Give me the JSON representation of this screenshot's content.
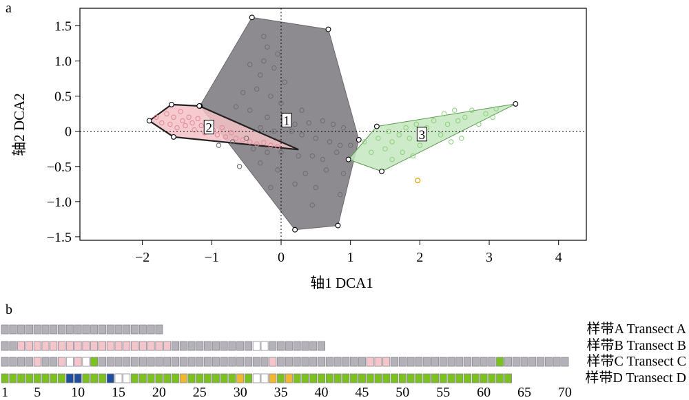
{
  "panel_a": {
    "letter": "a",
    "xlabel": "轴1 DCA1",
    "ylabel": "轴2 DCA2"
  },
  "panel_b": {
    "letter": "b"
  },
  "colors": {
    "group1_fill": "#8e8b90",
    "group1_point": "#6f6c72",
    "group2_fill": "#f4c2c8",
    "group2_point": "#e58a98",
    "group3_fill": "#c6e8c0",
    "group3_point": "#8fd07f",
    "outlier": "#e3a71c",
    "cell_gray": "#b4b2b8",
    "cell_pink": "#f5c5cc",
    "cell_green": "#7cc21e",
    "cell_yellow": "#f0b733",
    "cell_blue": "#1f4e9b",
    "cell_white": "#ffffff"
  },
  "chart_data": [
    {
      "type": "scatter",
      "xlim": [
        -2.9,
        4.4
      ],
      "ylim": [
        -1.55,
        1.75
      ],
      "x_ticks": [
        -2,
        -1,
        0,
        1,
        2,
        3,
        4
      ],
      "x_tick_labels": [
        "−2",
        "−1",
        "0",
        "1",
        "2",
        "3",
        "4"
      ],
      "y_ticks": [
        -1.5,
        -1.0,
        -0.5,
        0,
        0.5,
        1.0,
        1.5
      ],
      "y_tick_labels": [
        "−1.5",
        "−1.0",
        "−0.5",
        "0",
        "0.5",
        "1.0",
        "1.5"
      ],
      "reference_lines": {
        "x": 0,
        "y": 0
      },
      "groups": [
        {
          "label": "1",
          "label_pos": [
            0.08,
            0.15
          ],
          "hull": [
            [
              -0.42,
              1.62
            ],
            [
              0.68,
              1.45
            ],
            [
              1.12,
              -0.12
            ],
            [
              0.82,
              -1.34
            ],
            [
              0.2,
              -1.4
            ],
            [
              -1.17,
              0.36
            ]
          ],
          "points": [
            [
              -0.25,
              1.35
            ],
            [
              -0.2,
              1.2
            ],
            [
              -0.05,
              1.1
            ],
            [
              -0.25,
              1.0
            ],
            [
              -0.45,
              0.95
            ],
            [
              -0.1,
              0.9
            ],
            [
              -0.3,
              0.8
            ],
            [
              0.05,
              0.7
            ],
            [
              -0.35,
              0.6
            ],
            [
              -0.55,
              0.55
            ],
            [
              -0.15,
              0.5
            ],
            [
              0.0,
              0.4
            ],
            [
              0.3,
              0.3
            ],
            [
              -0.45,
              0.3
            ],
            [
              -0.65,
              0.35
            ],
            [
              -0.2,
              0.2
            ],
            [
              0.1,
              0.2
            ],
            [
              0.2,
              0.1
            ],
            [
              0.4,
              0.12
            ],
            [
              0.6,
              0.15
            ],
            [
              0.75,
              0.1
            ],
            [
              0.9,
              0.05
            ],
            [
              -0.3,
              0.05
            ],
            [
              -0.1,
              0.0
            ],
            [
              0.15,
              0.0
            ],
            [
              0.3,
              -0.05
            ],
            [
              0.5,
              -0.1
            ],
            [
              0.7,
              -0.15
            ],
            [
              0.85,
              -0.2
            ],
            [
              1.0,
              -0.2
            ],
            [
              -0.5,
              -0.1
            ],
            [
              -0.7,
              -0.15
            ],
            [
              -0.9,
              -0.2
            ],
            [
              -0.4,
              -0.25
            ],
            [
              -0.2,
              -0.3
            ],
            [
              0.0,
              -0.3
            ],
            [
              0.25,
              -0.35
            ],
            [
              0.45,
              -0.35
            ],
            [
              0.6,
              -0.4
            ],
            [
              0.8,
              -0.3
            ],
            [
              -0.3,
              -0.45
            ],
            [
              -0.6,
              -0.5
            ],
            [
              -0.05,
              -0.55
            ],
            [
              0.35,
              -0.6
            ],
            [
              0.65,
              -0.55
            ],
            [
              0.9,
              -0.6
            ],
            [
              0.2,
              -0.75
            ],
            [
              0.5,
              -0.8
            ],
            [
              0.85,
              -0.9
            ],
            [
              0.45,
              -1.05
            ],
            [
              -0.15,
              -0.8
            ]
          ],
          "hull_points": [
            [
              -0.42,
              1.62
            ],
            [
              0.68,
              1.45
            ],
            [
              1.12,
              -0.12
            ],
            [
              0.82,
              -1.34
            ],
            [
              0.2,
              -1.4
            ],
            [
              -1.17,
              0.36
            ]
          ]
        },
        {
          "label": "2",
          "label_pos": [
            -1.04,
            0.05
          ],
          "hull": [
            [
              -1.58,
              0.38
            ],
            [
              -1.18,
              0.36
            ],
            [
              0.25,
              -0.26
            ],
            [
              -1.55,
              -0.08
            ],
            [
              -1.9,
              0.15
            ]
          ],
          "points": [
            [
              -1.8,
              0.2
            ],
            [
              -1.72,
              0.12
            ],
            [
              -1.65,
              0.25
            ],
            [
              -1.6,
              0.1
            ],
            [
              -1.55,
              0.2
            ],
            [
              -1.5,
              0.05
            ],
            [
              -1.45,
              0.28
            ],
            [
              -1.42,
              0.15
            ],
            [
              -1.38,
              0.08
            ],
            [
              -1.33,
              0.2
            ],
            [
              -1.28,
              0.12
            ],
            [
              -1.25,
              0.02
            ],
            [
              -1.2,
              0.18
            ],
            [
              -1.15,
              0.08
            ],
            [
              -1.1,
              -0.02
            ],
            [
              -1.05,
              0.12
            ],
            [
              -0.98,
              0.02
            ],
            [
              -0.92,
              -0.05
            ],
            [
              -0.85,
              0.05
            ],
            [
              -0.8,
              -0.08
            ],
            [
              -0.72,
              -0.02
            ],
            [
              -0.65,
              -0.1
            ],
            [
              -0.55,
              -0.12
            ],
            [
              -0.45,
              -0.15
            ],
            [
              -0.35,
              -0.18
            ],
            [
              -0.25,
              -0.16
            ],
            [
              -0.15,
              -0.2
            ],
            [
              -0.05,
              -0.22
            ]
          ],
          "hull_points": [
            [
              -1.58,
              0.38
            ],
            [
              -1.9,
              0.15
            ],
            [
              -1.55,
              -0.08
            ],
            [
              -1.18,
              0.36
            ]
          ]
        },
        {
          "label": "3",
          "label_pos": [
            2.03,
            -0.05
          ],
          "hull": [
            [
              1.38,
              0.07
            ],
            [
              3.38,
              0.39
            ],
            [
              1.45,
              -0.57
            ],
            [
              0.97,
              -0.4
            ]
          ],
          "points": [
            [
              1.2,
              -0.15
            ],
            [
              1.3,
              -0.3
            ],
            [
              1.4,
              -0.1
            ],
            [
              1.5,
              -0.25
            ],
            [
              1.55,
              0.0
            ],
            [
              1.6,
              -0.15
            ],
            [
              1.7,
              -0.05
            ],
            [
              1.75,
              -0.3
            ],
            [
              1.8,
              0.05
            ],
            [
              1.85,
              -0.1
            ],
            [
              1.95,
              0.1
            ],
            [
              2.0,
              -0.2
            ],
            [
              2.1,
              0.05
            ],
            [
              2.2,
              0.15
            ],
            [
              2.3,
              -0.05
            ],
            [
              2.35,
              0.25
            ],
            [
              2.4,
              0.1
            ],
            [
              2.5,
              0.3
            ],
            [
              2.55,
              0.15
            ],
            [
              2.6,
              -0.1
            ],
            [
              2.65,
              0.2
            ],
            [
              2.75,
              0.3
            ],
            [
              2.85,
              0.1
            ],
            [
              2.95,
              0.25
            ],
            [
              3.05,
              0.2
            ],
            [
              3.1,
              0.32
            ],
            [
              2.45,
              -0.15
            ],
            [
              1.9,
              -0.35
            ],
            [
              1.6,
              -0.4
            ]
          ],
          "hull_points": [
            [
              1.38,
              0.07
            ],
            [
              3.38,
              0.39
            ],
            [
              1.45,
              -0.57
            ],
            [
              0.97,
              -0.4
            ]
          ]
        }
      ],
      "outliers": [
        [
          1.97,
          -0.7
        ]
      ]
    },
    {
      "type": "heatmap",
      "x_ticks": [
        1,
        5,
        10,
        15,
        20,
        25,
        30,
        35,
        40,
        45,
        50,
        55,
        60,
        65,
        70
      ],
      "transects": [
        {
          "label": "样带A Transect A",
          "cells": [
            "g",
            "g",
            "g",
            "g",
            "g",
            "g",
            "g",
            "g",
            "g",
            "g",
            "g",
            "g",
            "g",
            "g",
            "g",
            "g",
            "g",
            "g",
            "g",
            "g"
          ]
        },
        {
          "label": "样带B Transect B",
          "cells": [
            "g",
            "g",
            "p",
            "p",
            "p",
            "p",
            "p",
            "p",
            "p",
            "p",
            "p",
            "p",
            "p",
            "p",
            "p",
            "p",
            "p",
            "p",
            "p",
            "p",
            "p",
            "g",
            "g",
            "g",
            "g",
            "g",
            "g",
            "g",
            "g",
            "g",
            "g",
            "w",
            "w",
            "g",
            "g",
            "g",
            "g",
            "g",
            "g",
            "g"
          ]
        },
        {
          "label": "样带C Transect C",
          "cells": [
            "g",
            "g",
            "g",
            "g",
            "p",
            "g",
            "g",
            "p",
            "w",
            "p",
            "w",
            "G",
            "g",
            "g",
            "g",
            "g",
            "g",
            "g",
            "g",
            "g",
            "g",
            "g",
            "g",
            "g",
            "g",
            "g",
            "g",
            "g",
            "g",
            "g",
            "g",
            "g",
            "g",
            "p",
            "g",
            "g",
            "g",
            "g",
            "g",
            "g",
            "g",
            "g",
            "g",
            "g",
            "g",
            "p",
            "p",
            "p",
            "g",
            "g",
            "g",
            "g",
            "g",
            "g",
            "g",
            "g",
            "g",
            "g",
            "g",
            "g",
            "g",
            "G",
            "g",
            "g",
            "g",
            "g",
            "g",
            "g",
            "g",
            "g"
          ]
        },
        {
          "label": "样带D Transect D",
          "cells": [
            "G",
            "G",
            "G",
            "G",
            "G",
            "G",
            "G",
            "G",
            "B",
            "B",
            "G",
            "G",
            "G",
            "B",
            "w",
            "w",
            "G",
            "G",
            "G",
            "G",
            "G",
            "G",
            "Y",
            "G",
            "G",
            "G",
            "G",
            "G",
            "G",
            "Y",
            "G",
            "w",
            "w",
            "Y",
            "G",
            "Y",
            "G",
            "G",
            "G",
            "G",
            "G",
            "G",
            "G",
            "G",
            "G",
            "G",
            "G",
            "G",
            "G",
            "G",
            "G",
            "G",
            "G",
            "G",
            "G",
            "G",
            "G",
            "G",
            "G",
            "G",
            "G",
            "G",
            "G"
          ]
        }
      ]
    }
  ]
}
